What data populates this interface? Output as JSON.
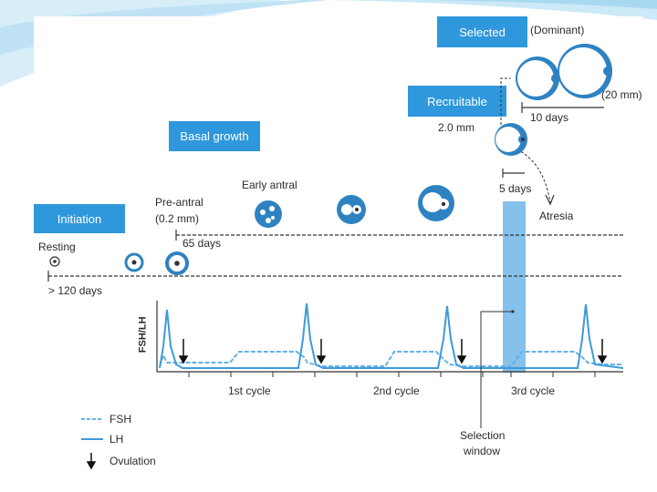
{
  "stages": {
    "initiation": "Initiation",
    "basal_growth": "Basal growth",
    "recruitable": "Recruitable",
    "selected": "Selected"
  },
  "labels": {
    "dominant": "(Dominant)",
    "size_20mm": "(20 mm)",
    "ten_days": "10 days",
    "size_2mm": "2.0 mm",
    "five_days": "5 days",
    "atresia": "Atresia",
    "early_antral": "Early antral",
    "pre_antral": "Pre-antral",
    "pre_antral_size": "(0.2 mm)",
    "sixty_five_days": "65 days",
    "resting": "Resting",
    "over_120_days": "> 120 days",
    "y_axis": "FSH/LH",
    "cycle_1": "1st cycle",
    "cycle_2": "2nd cycle",
    "cycle_3": "3rd cycle",
    "selection_window_1": "Selection",
    "selection_window_2": "window"
  },
  "legend": {
    "fsh": "FSH",
    "lh": "LH",
    "ovulation": "Ovulation"
  },
  "colors": {
    "box_blue": "#2f97dc",
    "follicle_blue": "#2f82c2",
    "window_blue": "#85c1eb",
    "lh_line": "#3f9ad8",
    "fsh_line": "#64b2e6",
    "background_swoosh": "#bfe3f4"
  }
}
